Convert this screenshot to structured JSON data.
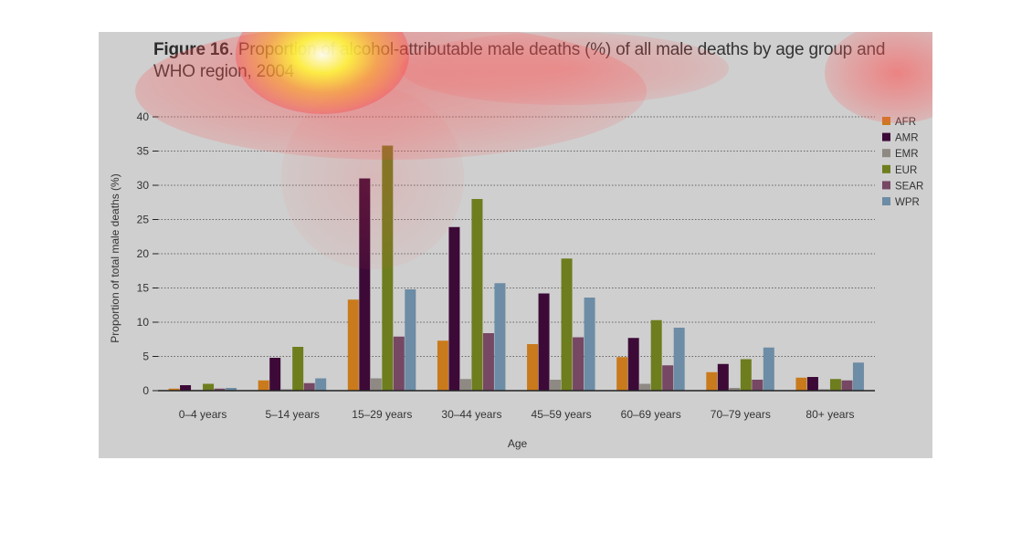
{
  "figure": {
    "label": "Figure 16",
    "title": ". Proportion of alcohol-attributable male deaths (%) of all male deaths by age group and WHO region, 2004"
  },
  "colors": {
    "panel_bg": "#cfcfcf",
    "grid": "#666666",
    "axis": "#222222",
    "text": "#333333"
  },
  "chart_data": {
    "type": "bar",
    "xlabel": "Age",
    "ylabel": "Proportion of total male deaths (%)",
    "ylim": [
      0,
      40
    ],
    "yticks": [
      0,
      5,
      10,
      15,
      20,
      25,
      30,
      35,
      40
    ],
    "grid": true,
    "legend_position": "top-right",
    "categories": [
      "0–4 years",
      "5–14 years",
      "15–29 years",
      "30–44 years",
      "45–59 years",
      "60–69 years",
      "70–79 years",
      "80+ years"
    ],
    "series": [
      {
        "name": "AFR",
        "color": "#c97a1c",
        "values": [
          0.3,
          1.5,
          13.3,
          7.3,
          6.8,
          4.9,
          2.7,
          1.9
        ]
      },
      {
        "name": "AMR",
        "color": "#3d0a38",
        "values": [
          0.8,
          4.8,
          31.0,
          23.9,
          14.2,
          7.7,
          3.9,
          2.0
        ]
      },
      {
        "name": "EMR",
        "color": "#8e8982",
        "values": [
          0.1,
          0.2,
          1.8,
          1.7,
          1.6,
          1.0,
          0.4,
          0.2
        ]
      },
      {
        "name": "EUR",
        "color": "#6e7d1e",
        "values": [
          1.0,
          6.4,
          35.8,
          28.0,
          19.3,
          10.3,
          4.6,
          1.7
        ]
      },
      {
        "name": "SEAR",
        "color": "#764864",
        "values": [
          0.3,
          1.1,
          7.9,
          8.4,
          7.8,
          3.7,
          1.6,
          1.5
        ]
      },
      {
        "name": "WPR",
        "color": "#6d8ca5",
        "values": [
          0.4,
          1.8,
          14.8,
          15.7,
          13.6,
          9.2,
          6.3,
          4.1
        ]
      }
    ]
  }
}
